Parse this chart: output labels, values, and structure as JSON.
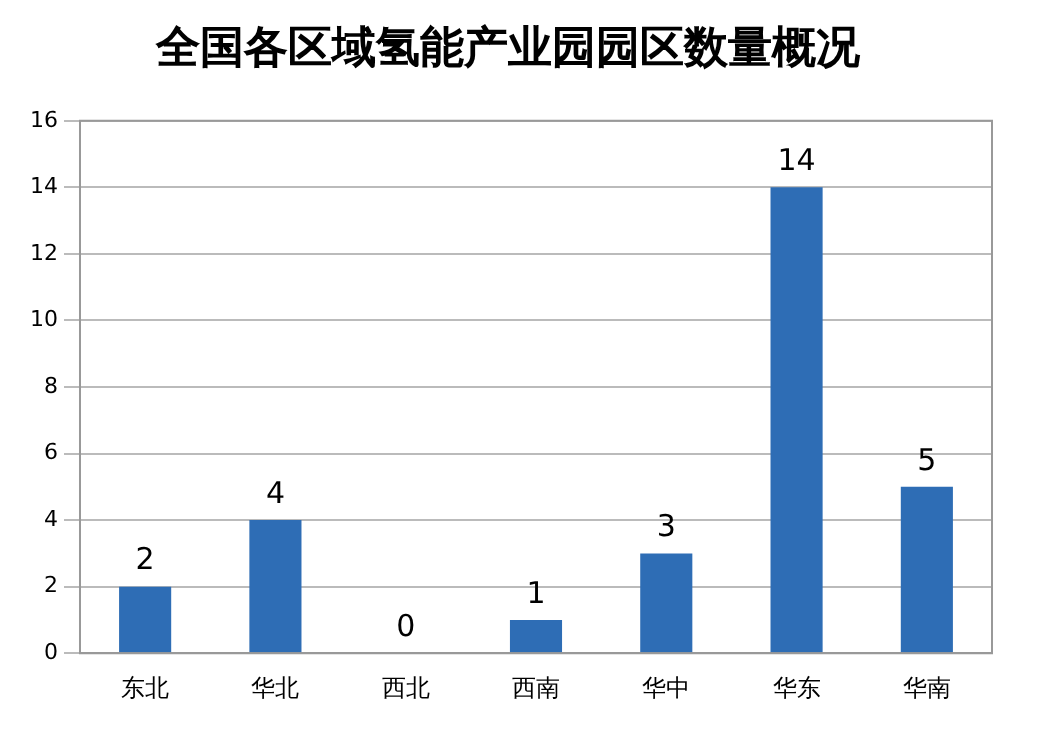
{
  "chart_data": {
    "type": "bar",
    "title": "全国各区域氢能产业园园区数量概况",
    "categories": [
      "东北",
      "华北",
      "西北",
      "西南",
      "华中",
      "华东",
      "华南"
    ],
    "values": [
      2,
      4,
      0,
      1,
      3,
      14,
      5
    ],
    "color": "#2e6db5",
    "ylim": [
      0,
      16
    ],
    "yticks": [
      0,
      2,
      4,
      6,
      8,
      10,
      12,
      14,
      16
    ],
    "grid": "y",
    "data_labels": true
  }
}
